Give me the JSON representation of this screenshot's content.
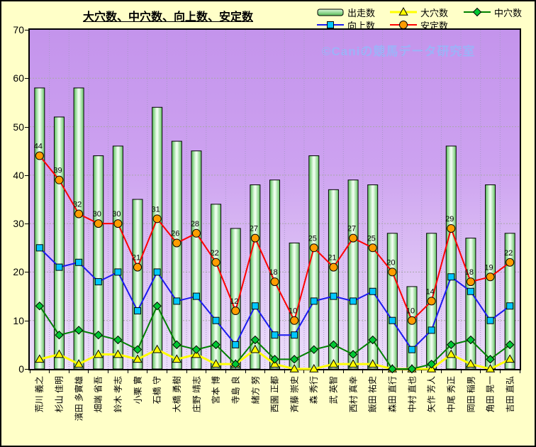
{
  "title": "大穴数、中穴数、向上数、安定数",
  "watermark": "©Caniの競馬データ研究室",
  "legend": [
    {
      "label": "出走数",
      "swatch": "bar"
    },
    {
      "label": "大穴数",
      "swatch": "triangle"
    },
    {
      "label": "中穴数",
      "swatch": "diamond"
    },
    {
      "label": "向上数",
      "swatch": "square"
    },
    {
      "label": "安定数",
      "swatch": "circle"
    }
  ],
  "y_axis": {
    "ticks": [
      "0",
      "10",
      "20",
      "30",
      "40",
      "50",
      "60",
      "70"
    ]
  },
  "colors": {
    "background": "#FFFFC8",
    "plot_top": "#C494EC",
    "plot_bottom": "#ECDEFA",
    "grid_vertical": "#A898C8",
    "grid_horizontal": "#A8A8A8",
    "bar_gradient": [
      "#55BC55",
      "#DCF8DC",
      "#F6FFF6",
      "#63C463"
    ],
    "watermark": "#9DB2F8"
  },
  "chart_data": {
    "type": "bar",
    "subtype": "bar-line-combo",
    "title": "大穴数、中穴数、向上数、安定数",
    "xlabel": "",
    "ylabel": "",
    "ylim": [
      0,
      70
    ],
    "ytick_step": 10,
    "grid": true,
    "legend_position": "top",
    "categories": [
      "荒川 義之",
      "杉山 佳明",
      "濱田 多實雄",
      "畑端 省吾",
      "鈴木 孝志",
      "小栗 實",
      "石橋 守",
      "大橋 勇樹",
      "庄野 靖志",
      "宮本 博",
      "寺島 良",
      "緒方 努",
      "西園 正都",
      "斉藤 崇史",
      "森 秀行",
      "武 英智",
      "西村 真幸",
      "飯田 祐史",
      "森田 直行",
      "中村 直也",
      "矢作 芳人",
      "中尾 秀正",
      "岡田 稲男",
      "角田 晃一",
      "吉田 直弘"
    ],
    "series": [
      {
        "name": "出走数",
        "type": "bar",
        "values": [
          58,
          52,
          58,
          44,
          46,
          35,
          54,
          47,
          45,
          34,
          29,
          38,
          39,
          26,
          44,
          37,
          39,
          38,
          28,
          17,
          28,
          46,
          27,
          38,
          28
        ]
      },
      {
        "name": "大穴数",
        "type": "line",
        "marker": "triangle",
        "line_color": "#FFFF00",
        "marker_color": "#FFFF00",
        "line_width": 3,
        "values": [
          2,
          3,
          1,
          3,
          3,
          2,
          4,
          2,
          3,
          1,
          1,
          4,
          1,
          0,
          0,
          1,
          1,
          1,
          0,
          0,
          0,
          3,
          1,
          0,
          2
        ]
      },
      {
        "name": "中穴数",
        "type": "line",
        "marker": "diamond",
        "line_color": "#008000",
        "marker_color": "#00C832",
        "line_width": 2,
        "values": [
          13,
          7,
          8,
          7,
          6,
          4,
          13,
          5,
          4,
          5,
          1,
          6,
          2,
          2,
          4,
          5,
          3,
          6,
          0,
          0,
          1,
          5,
          6,
          2,
          5
        ]
      },
      {
        "name": "向上数",
        "type": "line",
        "marker": "square",
        "line_color": "#1A1AF0",
        "marker_color": "#00C8FF",
        "line_width": 2,
        "values": [
          25,
          21,
          22,
          18,
          20,
          12,
          20,
          14,
          15,
          10,
          5,
          13,
          7,
          7,
          14,
          15,
          14,
          16,
          10,
          4,
          8,
          19,
          16,
          10,
          13
        ]
      },
      {
        "name": "安定数",
        "type": "line",
        "marker": "circle",
        "line_color": "#FF0000",
        "marker_color": "#FF9D00",
        "line_width": 2,
        "data_labels": true,
        "values": [
          44,
          39,
          32,
          30,
          30,
          21,
          31,
          26,
          28,
          22,
          12,
          27,
          18,
          10,
          25,
          21,
          27,
          25,
          20,
          10,
          14,
          29,
          18,
          19,
          22
        ]
      }
    ]
  }
}
